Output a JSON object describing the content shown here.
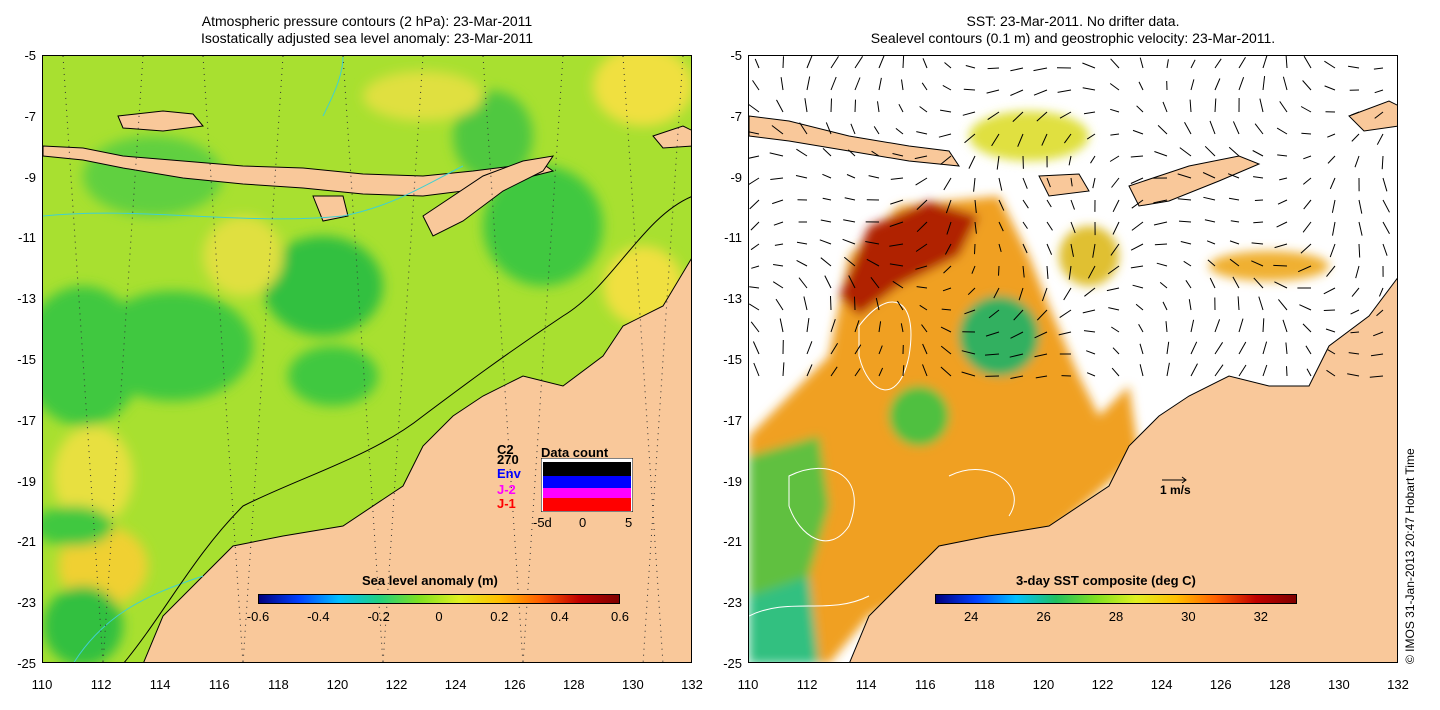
{
  "left_panel": {
    "title_line1": "Atmospheric pressure contours (2 hPa): 23-Mar-2011",
    "title_line2": "Isostatically adjusted sea level anomaly: 23-Mar-2011",
    "colorbar": {
      "title": "Sea level anomaly (m)",
      "ticks": [
        "-0.6",
        "-0.4",
        "-0.2",
        "0",
        "0.2",
        "0.4",
        "0.6"
      ],
      "colors": [
        "#00007f",
        "#0040ff",
        "#00bfff",
        "#20d080",
        "#7fe020",
        "#e0f020",
        "#ffbf00",
        "#ff6000",
        "#c00000",
        "#7f0000"
      ]
    },
    "data_count": {
      "title": "Data count",
      "satellites": [
        "C2",
        "270",
        "Env",
        "J-2",
        "J-1"
      ],
      "satellite_colors": [
        "#000000",
        "#000000",
        "#0000ff",
        "#ff00ff",
        "#ff0000"
      ],
      "axis_ticks": [
        "-5d",
        "0",
        "5"
      ]
    }
  },
  "right_panel": {
    "title_line1": "SST: 23-Mar-2011. No drifter data.",
    "title_line2": "Sealevel contours (0.1 m) and geostrophic velocity: 23-Mar-2011.",
    "velocity_scale": "1 m/s",
    "colorbar": {
      "title": "3-day SST composite (deg C)",
      "ticks": [
        "24",
        "26",
        "28",
        "30",
        "32"
      ],
      "colors": [
        "#00007f",
        "#0040ff",
        "#00bfff",
        "#20c060",
        "#7fe020",
        "#e0f020",
        "#ffbf00",
        "#ff6000",
        "#c00000",
        "#7f0000"
      ]
    }
  },
  "axes": {
    "y_ticks": [
      "-5",
      "-7",
      "-9",
      "-11",
      "-13",
      "-15",
      "-17",
      "-19",
      "-21",
      "-23",
      "-25"
    ],
    "x_ticks": [
      "110",
      "112",
      "114",
      "116",
      "118",
      "120",
      "122",
      "124",
      "126",
      "128",
      "130",
      "132"
    ],
    "lon_range": [
      110,
      132
    ],
    "lat_range": [
      -25,
      -5
    ]
  },
  "map_colors": {
    "land": "#f9c89a",
    "coast": "#000000",
    "isobath": "#40d0d0",
    "sla_background": "#a8e030",
    "ocean_blank": "#ffffff"
  },
  "copyright": "© IMOS 31-Jan-2013 20:47 Hobart Time"
}
